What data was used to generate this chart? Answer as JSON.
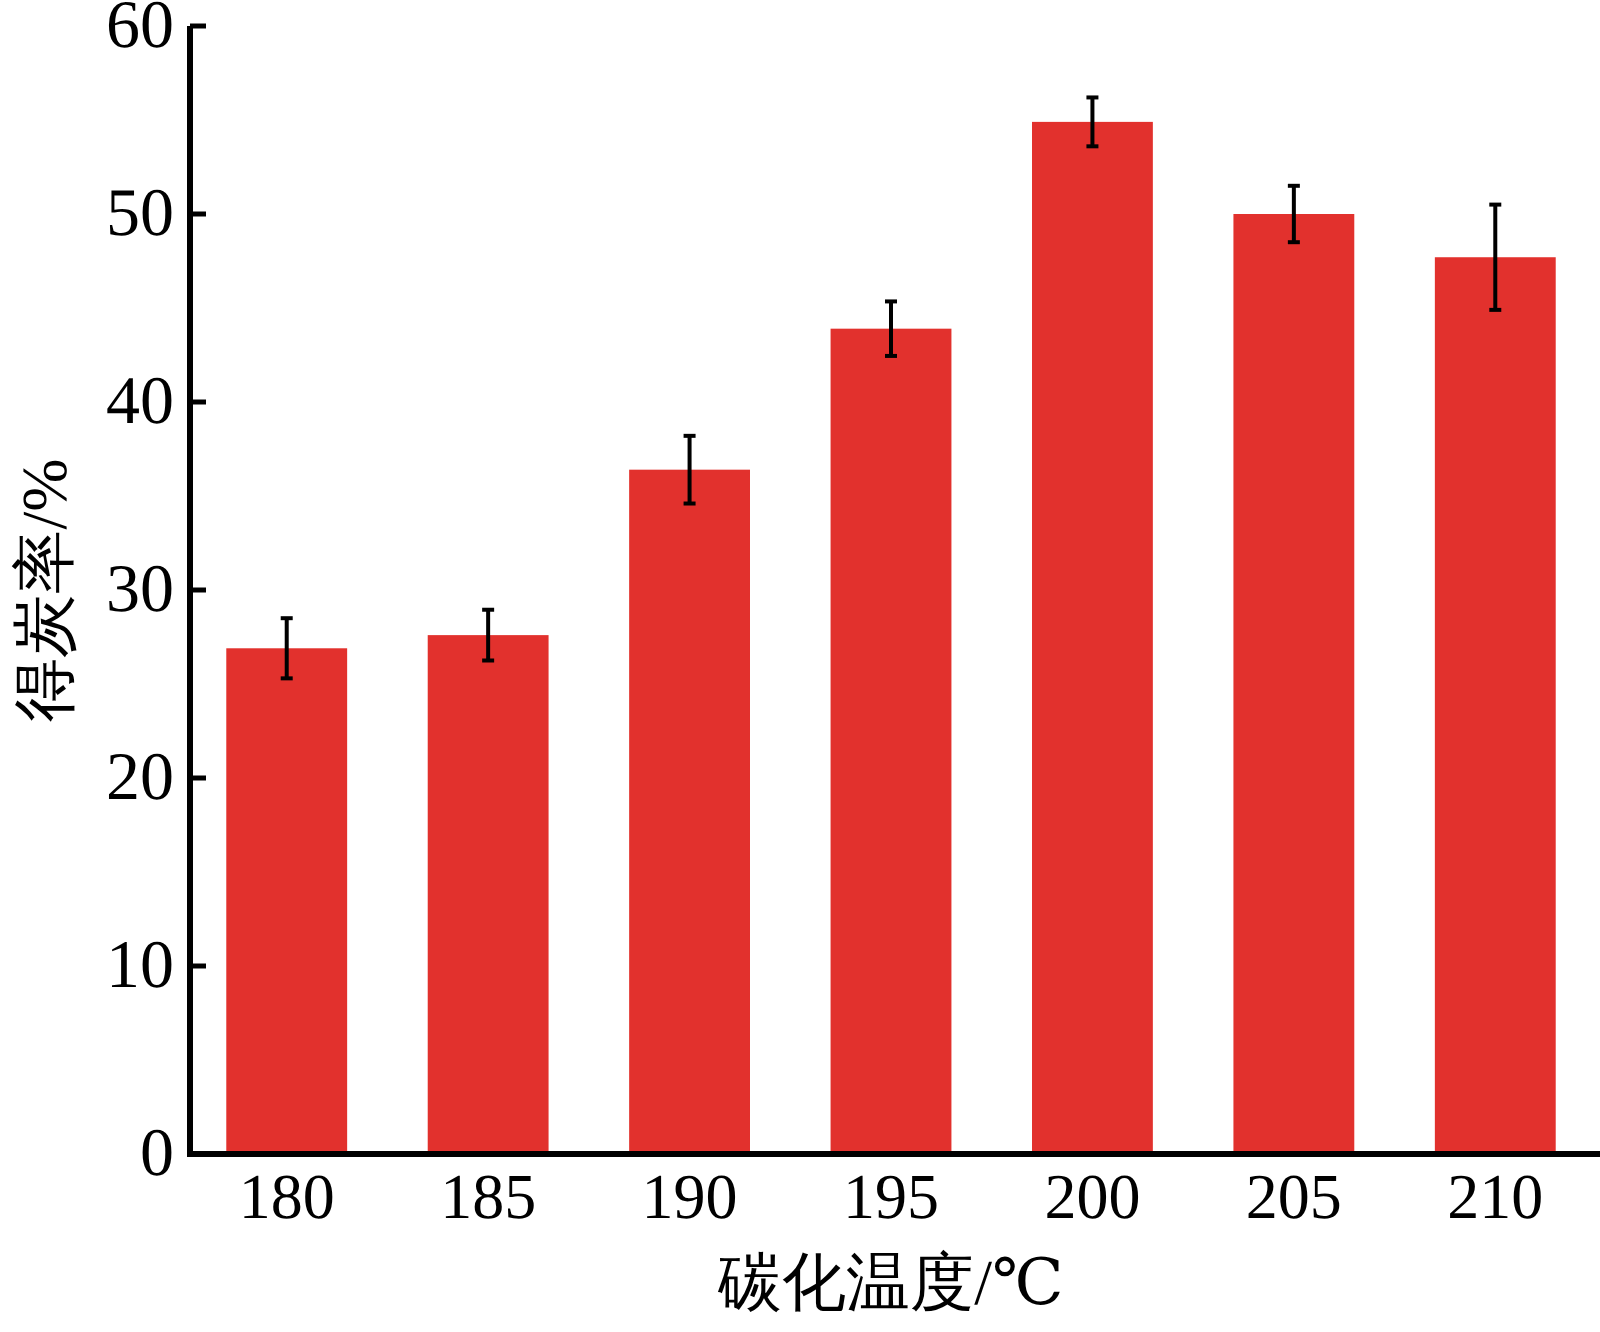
{
  "chart_data": {
    "type": "bar",
    "xlabel": "碳化温度/℃",
    "ylabel": "得炭率/%",
    "categories": [
      "180",
      "185",
      "190",
      "195",
      "200",
      "205",
      "210"
    ],
    "values": [
      26.9,
      27.6,
      36.4,
      43.9,
      54.9,
      50.0,
      47.7
    ],
    "errors": [
      1.6,
      1.35,
      1.8,
      1.45,
      1.3,
      1.5,
      2.8
    ],
    "color": "#e2312d",
    "ylim": [
      0,
      60
    ],
    "yticks": [
      0,
      10,
      20,
      30,
      40,
      50,
      60
    ]
  }
}
